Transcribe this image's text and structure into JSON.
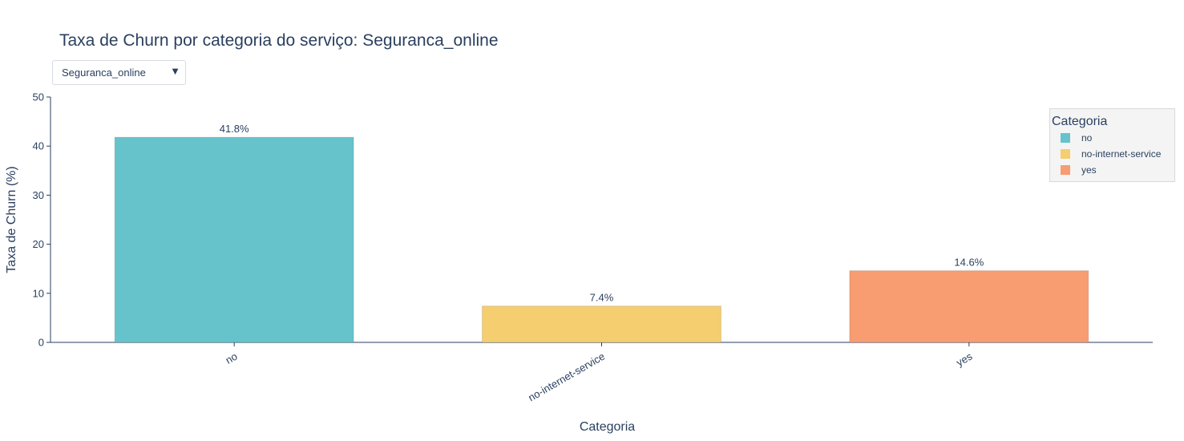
{
  "title": "Taxa de Churn por categoria do serviço: Seguranca_online",
  "dropdown": {
    "selected": "Seguranca_online"
  },
  "colors": {
    "no": "#66c3cb",
    "no-internet-service": "#f4ce6f",
    "yes": "#f89c72",
    "text": "#2a3f5f"
  },
  "chart_data": {
    "type": "bar",
    "categories": [
      "no",
      "no-internet-service",
      "yes"
    ],
    "values": [
      41.8,
      7.4,
      14.6
    ],
    "data_labels": [
      "41.8%",
      "7.4%",
      "14.6%"
    ],
    "xlabel": "Categoria",
    "ylabel": "Taxa de Churn (%)",
    "ylim": [
      0,
      50
    ],
    "yticks": [
      0,
      10,
      20,
      30,
      40,
      50
    ],
    "grid": false,
    "legend": {
      "title": "Categoria",
      "placement": "top-right",
      "items": [
        "no",
        "no-internet-service",
        "yes"
      ]
    }
  }
}
